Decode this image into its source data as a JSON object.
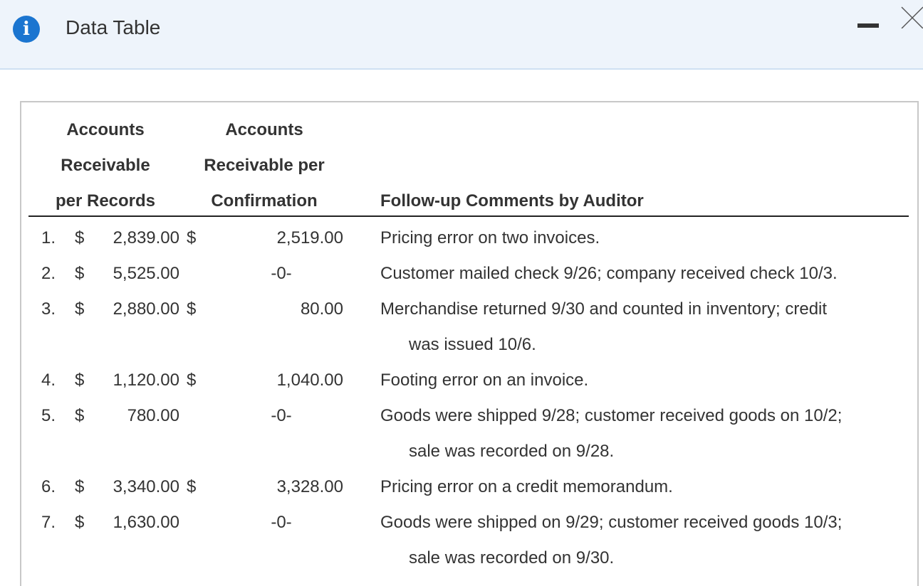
{
  "window": {
    "title": "Data Table"
  },
  "table": {
    "headers": {
      "col1": [
        "Accounts",
        "Receivable",
        "per Records"
      ],
      "col2": [
        "Accounts",
        "Receivable per",
        "Confirmation"
      ],
      "col3": "Follow-up Comments by Auditor"
    },
    "rows": [
      {
        "no": "1.",
        "cur1": "$",
        "records": "2,839.00",
        "cur2": "$",
        "confirm": "2,519.00",
        "comment": [
          "Pricing error on two invoices."
        ]
      },
      {
        "no": "2.",
        "cur1": "$",
        "records": "5,525.00",
        "cur2": "",
        "confirm": "-0-",
        "comment": [
          "Customer mailed check 9/26; company received check 10/3."
        ]
      },
      {
        "no": "3.",
        "cur1": "$",
        "records": "2,880.00",
        "cur2": "$",
        "confirm": "80.00",
        "comment": [
          "Merchandise returned 9/30 and counted in inventory; credit",
          "was issued 10/6."
        ]
      },
      {
        "no": "4.",
        "cur1": "$",
        "records": "1,120.00",
        "cur2": "$",
        "confirm": "1,040.00",
        "comment": [
          "Footing error on an invoice."
        ]
      },
      {
        "no": "5.",
        "cur1": "$",
        "records": "780.00",
        "cur2": "",
        "confirm": "-0-",
        "comment": [
          "Goods were shipped 9/28; customer received goods on 10/2;",
          "sale was recorded on 9/28."
        ]
      },
      {
        "no": "6.",
        "cur1": "$",
        "records": "3,340.00",
        "cur2": "$",
        "confirm": "3,328.00",
        "comment": [
          "Pricing error on a credit memorandum."
        ]
      },
      {
        "no": "7.",
        "cur1": "$",
        "records": "1,630.00",
        "cur2": "",
        "confirm": "-0-",
        "comment": [
          "Goods were shipped on 9/29; customer received goods 10/3;",
          "sale was recorded on 9/30."
        ]
      }
    ]
  },
  "colors": {
    "titlebar_bg": "#eef4fb",
    "info_icon": "#1b75d0"
  },
  "icons": [
    "info-icon",
    "minimize-icon",
    "close-icon"
  ]
}
